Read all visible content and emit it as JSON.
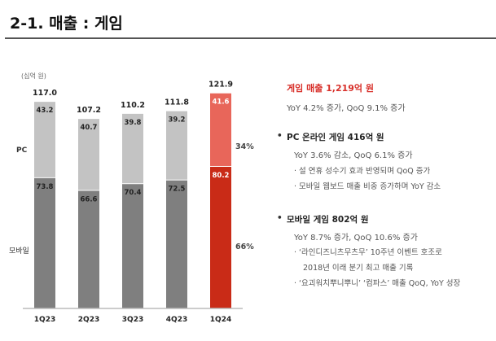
{
  "header": {
    "title": "2-1. 매출 : 게임"
  },
  "chart_data": {
    "type": "bar",
    "stacked": true,
    "unit_label": "(십억 원)",
    "categories": [
      "1Q23",
      "2Q23",
      "3Q23",
      "4Q23",
      "1Q24"
    ],
    "series": [
      {
        "name": "모바일",
        "values": [
          73.8,
          66.6,
          70.4,
          72.5,
          80.2
        ]
      },
      {
        "name": "PC",
        "values": [
          43.2,
          40.7,
          39.8,
          39.2,
          41.6
        ]
      }
    ],
    "totals": [
      117.0,
      107.2,
      110.2,
      111.8,
      121.9
    ],
    "share_labels": {
      "PC": "34%",
      "모바일": "66%"
    },
    "colors": {
      "pc": "#c3c3c3",
      "mobile": "#7f7f7f",
      "pc_highlight": "#e8665a",
      "mobile_highlight": "#c92b17"
    },
    "highlight_category": "1Q24",
    "grid": false
  },
  "summary": {
    "headline": "게임 매출 1,219억 원",
    "headline_sub": "YoY 4.2% 증가, QoQ 9.1% 증가",
    "pc": {
      "title": "PC 온라인 게임 416억 원",
      "sub": "YoY 3.6% 감소, QoQ 6.1% 증가",
      "points": [
        "· 설 연휴 성수기 효과 반영되며 QoQ 증가",
        "· 모바일 웹보드 매출 비중 증가하며 YoY 감소"
      ]
    },
    "mobile": {
      "title": "모바일 게임 802억 원",
      "sub": "YoY 8.7% 증가, QoQ 10.6% 증가",
      "points": [
        "· ‘라인디즈니츠무츠무’ 10주년 이벤트 호조로",
        "2018년 이래 분기 최고 매출 기록",
        "· ‘요괴워치뿌니뿌니’ ‘컴파스’ 매출 QoQ, YoY 성장"
      ]
    },
    "bullet": "•"
  }
}
